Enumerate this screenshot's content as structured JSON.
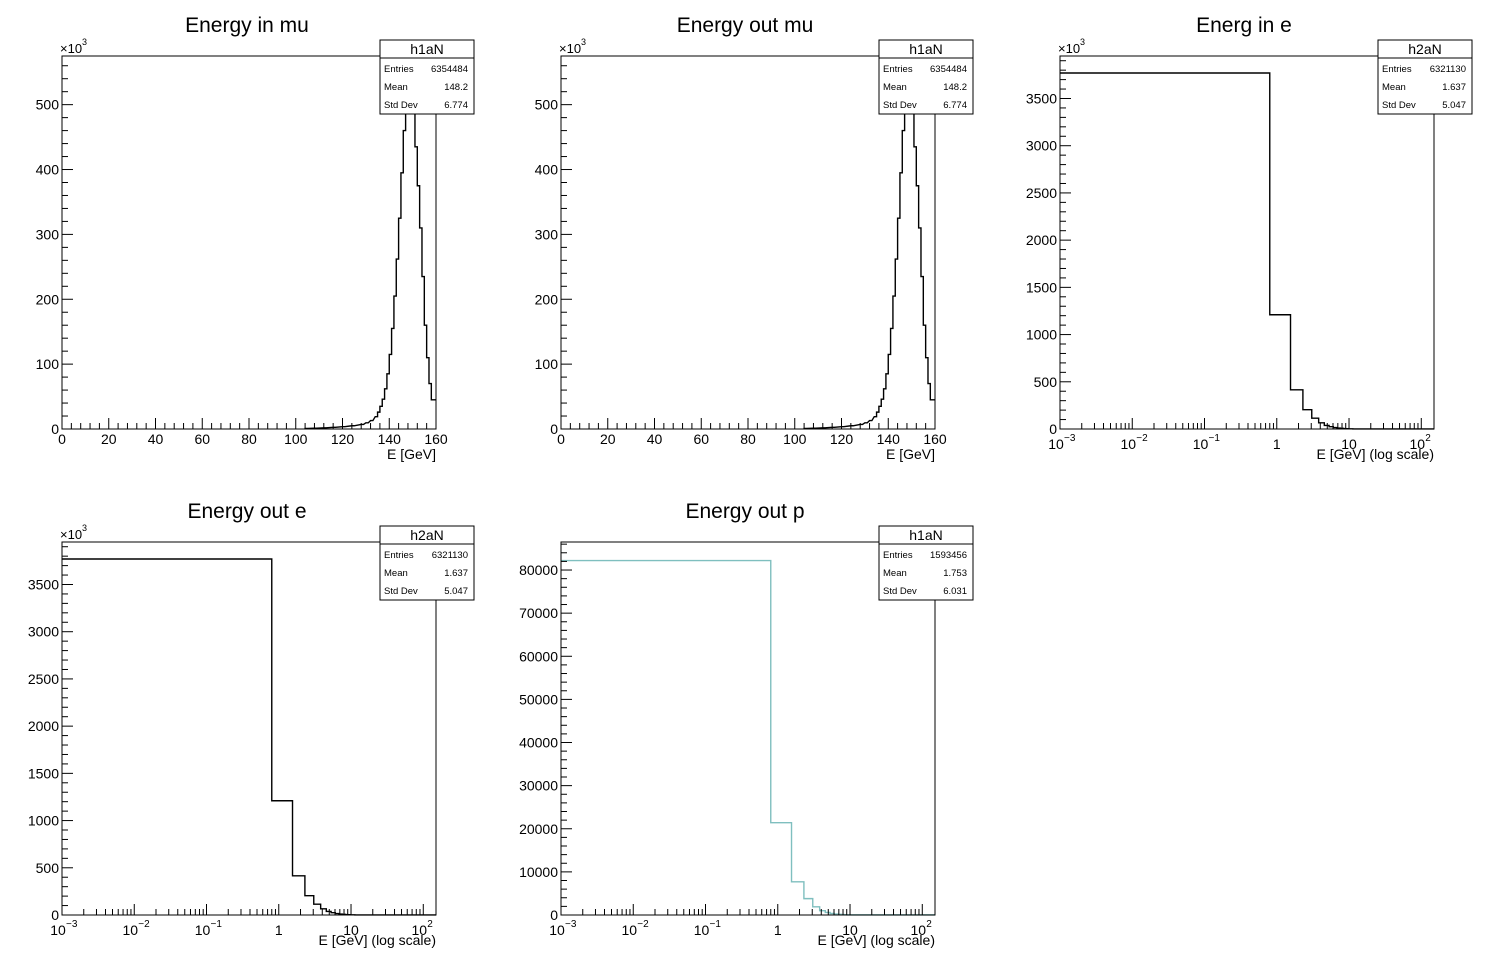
{
  "chart_data": [
    {
      "type": "histogram",
      "title": "Energy in mu",
      "xlabel": "E [GeV]",
      "ylabel": "",
      "xscale": "linear",
      "xlim": [
        0,
        160
      ],
      "ylim": [
        0,
        575000
      ],
      "y_multiplier_label": "×10",
      "y_multiplier_exp": "3",
      "y_tick_values": [
        0,
        100000,
        200000,
        300000,
        400000,
        500000
      ],
      "y_tick_labels": [
        "0",
        "100",
        "200",
        "300",
        "400",
        "500"
      ],
      "x_tick_values": [
        0,
        20,
        40,
        60,
        80,
        100,
        120,
        140,
        160
      ],
      "x_tick_labels": [
        "0",
        "20",
        "40",
        "60",
        "80",
        "100",
        "120",
        "140",
        "160"
      ],
      "line_color": "#000000",
      "stats": {
        "name": "h1aN",
        "rows": [
          {
            "label": "Entries",
            "value": "6354484"
          },
          {
            "label": "Mean",
            "value": "148.2"
          },
          {
            "label": "Std Dev",
            "value": "6.774"
          }
        ]
      },
      "bins": [
        {
          "x": 104,
          "y": 800
        },
        {
          "x": 108,
          "y": 1200
        },
        {
          "x": 112,
          "y": 1800
        },
        {
          "x": 116,
          "y": 2600
        },
        {
          "x": 120,
          "y": 3500
        },
        {
          "x": 124,
          "y": 5000
        },
        {
          "x": 128,
          "y": 7000
        },
        {
          "x": 130,
          "y": 9500
        },
        {
          "x": 132,
          "y": 13000
        },
        {
          "x": 134,
          "y": 19000
        },
        {
          "x": 135,
          "y": 26000
        },
        {
          "x": 136,
          "y": 35000
        },
        {
          "x": 137,
          "y": 46000
        },
        {
          "x": 138,
          "y": 62000
        },
        {
          "x": 139,
          "y": 85000
        },
        {
          "x": 140,
          "y": 115000
        },
        {
          "x": 141,
          "y": 155000
        },
        {
          "x": 142,
          "y": 205000
        },
        {
          "x": 143,
          "y": 262000
        },
        {
          "x": 144,
          "y": 325000
        },
        {
          "x": 145,
          "y": 395000
        },
        {
          "x": 146,
          "y": 460000
        },
        {
          "x": 147,
          "y": 515000
        },
        {
          "x": 148,
          "y": 547000
        },
        {
          "x": 149,
          "y": 540000
        },
        {
          "x": 150,
          "y": 495000
        },
        {
          "x": 151,
          "y": 435000
        },
        {
          "x": 152,
          "y": 375000
        },
        {
          "x": 153,
          "y": 310000
        },
        {
          "x": 154,
          "y": 235000
        },
        {
          "x": 155,
          "y": 160000
        },
        {
          "x": 156,
          "y": 110000
        },
        {
          "x": 157,
          "y": 70000
        },
        {
          "x": 158,
          "y": 45000
        },
        {
          "x": 159,
          "y": 45000
        }
      ],
      "bin_width": 1
    },
    {
      "type": "histogram",
      "title": "Energy out mu",
      "xlabel": "E [GeV]",
      "ylabel": "",
      "xscale": "linear",
      "xlim": [
        0,
        160
      ],
      "ylim": [
        0,
        575000
      ],
      "y_multiplier_label": "×10",
      "y_multiplier_exp": "3",
      "y_tick_values": [
        0,
        100000,
        200000,
        300000,
        400000,
        500000
      ],
      "y_tick_labels": [
        "0",
        "100",
        "200",
        "300",
        "400",
        "500"
      ],
      "x_tick_values": [
        0,
        20,
        40,
        60,
        80,
        100,
        120,
        140,
        160
      ],
      "x_tick_labels": [
        "0",
        "20",
        "40",
        "60",
        "80",
        "100",
        "120",
        "140",
        "160"
      ],
      "line_color": "#000000",
      "stats": {
        "name": "h1aN",
        "rows": [
          {
            "label": "Entries",
            "value": "6354484"
          },
          {
            "label": "Mean",
            "value": "148.2"
          },
          {
            "label": "Std Dev",
            "value": "6.774"
          }
        ]
      },
      "bins": [
        {
          "x": 104,
          "y": 800
        },
        {
          "x": 108,
          "y": 1200
        },
        {
          "x": 112,
          "y": 1800
        },
        {
          "x": 116,
          "y": 2600
        },
        {
          "x": 120,
          "y": 3500
        },
        {
          "x": 124,
          "y": 5000
        },
        {
          "x": 128,
          "y": 7000
        },
        {
          "x": 130,
          "y": 9500
        },
        {
          "x": 132,
          "y": 13000
        },
        {
          "x": 134,
          "y": 19000
        },
        {
          "x": 135,
          "y": 26000
        },
        {
          "x": 136,
          "y": 35000
        },
        {
          "x": 137,
          "y": 46000
        },
        {
          "x": 138,
          "y": 62000
        },
        {
          "x": 139,
          "y": 85000
        },
        {
          "x": 140,
          "y": 115000
        },
        {
          "x": 141,
          "y": 155000
        },
        {
          "x": 142,
          "y": 205000
        },
        {
          "x": 143,
          "y": 262000
        },
        {
          "x": 144,
          "y": 325000
        },
        {
          "x": 145,
          "y": 395000
        },
        {
          "x": 146,
          "y": 460000
        },
        {
          "x": 147,
          "y": 515000
        },
        {
          "x": 148,
          "y": 547000
        },
        {
          "x": 149,
          "y": 540000
        },
        {
          "x": 150,
          "y": 495000
        },
        {
          "x": 151,
          "y": 435000
        },
        {
          "x": 152,
          "y": 375000
        },
        {
          "x": 153,
          "y": 310000
        },
        {
          "x": 154,
          "y": 235000
        },
        {
          "x": 155,
          "y": 160000
        },
        {
          "x": 156,
          "y": 110000
        },
        {
          "x": 157,
          "y": 70000
        },
        {
          "x": 158,
          "y": 45000
        },
        {
          "x": 159,
          "y": 45000
        }
      ],
      "bin_width": 1
    },
    {
      "type": "histogram",
      "title": "Energ in e",
      "xlabel": "E [GeV] (log scale)",
      "ylabel": "",
      "xscale": "log",
      "xlim": [
        0.001,
        150
      ],
      "ylim": [
        0,
        3950000
      ],
      "y_multiplier_label": "×10",
      "y_multiplier_exp": "3",
      "y_tick_values": [
        0,
        500000,
        1000000,
        1500000,
        2000000,
        2500000,
        3000000,
        3500000
      ],
      "y_tick_labels": [
        "0",
        "500",
        "1000",
        "1500",
        "2000",
        "2500",
        "3000",
        "3500"
      ],
      "x_tick_values": [
        0.001,
        0.01,
        0.1,
        1,
        10,
        100
      ],
      "x_tick_labels": [
        "10",
        "10",
        "10",
        "1",
        "10",
        "10"
      ],
      "x_tick_exps": [
        "−3",
        "−2",
        "−1",
        "",
        "",
        "2"
      ],
      "line_color": "#000000",
      "stats": {
        "name": "h2aN",
        "rows": [
          {
            "label": "Entries",
            "value": "6321130"
          },
          {
            "label": "Mean",
            "value": "1.637"
          },
          {
            "label": "Std Dev",
            "value": "5.047"
          }
        ]
      },
      "bin_edges": [
        0.001,
        0.8,
        1.55,
        2.3,
        3.05,
        3.8,
        4.55,
        5.3,
        6.05,
        6.8,
        7.55,
        8.3,
        9.05,
        9.8,
        10.55,
        11.3,
        150
      ],
      "values": [
        3770000,
        1210000,
        415000,
        205000,
        115000,
        65000,
        38000,
        24000,
        15000,
        10000,
        7000,
        5000,
        3500,
        2500,
        1800,
        600
      ]
    },
    {
      "type": "histogram",
      "title": "Energy out e",
      "xlabel": "E [GeV] (log scale)",
      "ylabel": "",
      "xscale": "log",
      "xlim": [
        0.001,
        150
      ],
      "ylim": [
        0,
        3950000
      ],
      "y_multiplier_label": "×10",
      "y_multiplier_exp": "3",
      "y_tick_values": [
        0,
        500000,
        1000000,
        1500000,
        2000000,
        2500000,
        3000000,
        3500000
      ],
      "y_tick_labels": [
        "0",
        "500",
        "1000",
        "1500",
        "2000",
        "2500",
        "3000",
        "3500"
      ],
      "x_tick_values": [
        0.001,
        0.01,
        0.1,
        1,
        10,
        100
      ],
      "x_tick_labels": [
        "10",
        "10",
        "10",
        "1",
        "10",
        "10"
      ],
      "x_tick_exps": [
        "−3",
        "−2",
        "−1",
        "",
        "",
        "2"
      ],
      "line_color": "#000000",
      "stats": {
        "name": "h2aN",
        "rows": [
          {
            "label": "Entries",
            "value": "6321130"
          },
          {
            "label": "Mean",
            "value": "1.637"
          },
          {
            "label": "Std Dev",
            "value": "5.047"
          }
        ]
      },
      "bin_edges": [
        0.001,
        0.8,
        1.55,
        2.3,
        3.05,
        3.8,
        4.55,
        5.3,
        6.05,
        6.8,
        7.55,
        8.3,
        9.05,
        9.8,
        10.55,
        11.3,
        150
      ],
      "values": [
        3770000,
        1210000,
        415000,
        205000,
        115000,
        65000,
        38000,
        24000,
        15000,
        10000,
        7000,
        5000,
        3500,
        2500,
        1800,
        600
      ]
    },
    {
      "type": "histogram",
      "title": "Energy out p",
      "xlabel": "E [GeV] (log scale)",
      "ylabel": "",
      "xscale": "log",
      "xlim": [
        0.001,
        150
      ],
      "ylim": [
        0,
        86500
      ],
      "y_multiplier_label": "",
      "y_multiplier_exp": "",
      "y_tick_values": [
        0,
        10000,
        20000,
        30000,
        40000,
        50000,
        60000,
        70000,
        80000
      ],
      "y_tick_labels": [
        "0",
        "10000",
        "20000",
        "30000",
        "40000",
        "50000",
        "60000",
        "70000",
        "80000"
      ],
      "x_tick_values": [
        0.001,
        0.01,
        0.1,
        1,
        10,
        100
      ],
      "x_tick_labels": [
        "10",
        "10",
        "10",
        "1",
        "10",
        "10"
      ],
      "x_tick_exps": [
        "−3",
        "−2",
        "−1",
        "",
        "",
        "2"
      ],
      "line_color": "#7fbfbf",
      "stats": {
        "name": "h1aN",
        "rows": [
          {
            "label": "Entries",
            "value": "1593456"
          },
          {
            "label": "Mean",
            "value": "1.753"
          },
          {
            "label": "Std Dev",
            "value": "6.031"
          }
        ]
      },
      "bin_edges": [
        0.001,
        0.8,
        1.55,
        2.3,
        3.05,
        3.8,
        4.55,
        5.3,
        6.05,
        6.8,
        7.55,
        8.3,
        9.05,
        150
      ],
      "values": [
        82200,
        21400,
        7700,
        3800,
        1900,
        1000,
        600,
        350,
        220,
        150,
        100,
        70,
        30
      ]
    }
  ]
}
